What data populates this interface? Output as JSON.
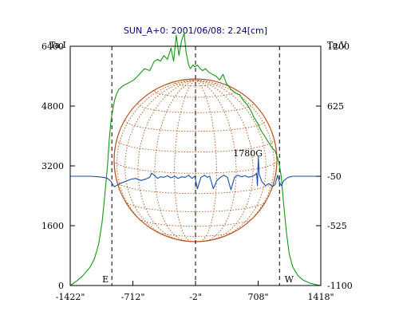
{
  "chart_data": {
    "type": "line",
    "title": "SUN_A+0: 2001/06/08: 2.24[cm]",
    "left_axis_title": "Ta,I",
    "right_axis_title": "Ta,V",
    "x_ticks": [
      {
        "value": -1422,
        "label": "-1422\""
      },
      {
        "value": -712,
        "label": "-712\""
      },
      {
        "value": -2,
        "label": "-2\""
      },
      {
        "value": 708,
        "label": "708\""
      },
      {
        "value": 1418,
        "label": "1418\""
      }
    ],
    "xlim": [
      -1422,
      1418
    ],
    "left_ylim": [
      0,
      6400
    ],
    "left_ticks": [
      0,
      1600,
      3200,
      4800,
      6400
    ],
    "right_ylim": [
      -1100,
      1200
    ],
    "right_ticks": [
      -1100,
      -525,
      -50,
      625,
      1200
    ],
    "limb_markers": [
      {
        "value": -950,
        "label": "E"
      },
      {
        "value": -2,
        "label": ""
      },
      {
        "value": 950,
        "label": "W"
      }
    ],
    "annotation": {
      "text": "1780G",
      "x": 700,
      "y_right": -50
    },
    "colors": {
      "intensity": "#119911",
      "polarization": "#1a4fa8",
      "disk": "#b5541a",
      "title": "#000080"
    },
    "series": [
      {
        "axis": "left",
        "x": [
          -1422,
          -1350,
          -1280,
          -1200,
          -1150,
          -1100,
          -1060,
          -1030,
          -1000,
          -980,
          -960,
          -940,
          -920,
          -900,
          -870,
          -820,
          -760,
          -700,
          -640,
          -580,
          -520,
          -470,
          -430,
          -400,
          -360,
          -320,
          -280,
          -250,
          -220,
          -190,
          -160,
          -130,
          -110,
          -80,
          -60,
          -30,
          -10,
          20,
          50,
          80,
          110,
          150,
          190,
          230,
          270,
          310,
          350,
          400,
          450,
          500,
          540,
          580,
          620,
          660,
          700,
          740,
          780,
          820,
          860,
          900,
          930,
          950,
          970,
          1000,
          1030,
          1060,
          1100,
          1160,
          1220,
          1300,
          1370,
          1418
        ],
        "y": [
          0,
          120,
          260,
          480,
          700,
          1100,
          1700,
          2400,
          3200,
          3900,
          4400,
          4700,
          4950,
          5100,
          5250,
          5350,
          5420,
          5500,
          5650,
          5800,
          5750,
          6000,
          6050,
          6000,
          6150,
          6050,
          6350,
          6000,
          6700,
          6150,
          6550,
          6750,
          6250,
          5900,
          5800,
          5900,
          5850,
          5900,
          5800,
          5750,
          5800,
          5700,
          5650,
          5600,
          5500,
          5650,
          5400,
          5250,
          5150,
          5100,
          4950,
          4850,
          4700,
          4500,
          4350,
          4150,
          4000,
          3850,
          3700,
          3600,
          3400,
          3200,
          2900,
          2100,
          1400,
          850,
          500,
          260,
          140,
          60,
          20,
          0
        ]
      },
      {
        "axis": "right",
        "x": [
          -1422,
          -1300,
          -1200,
          -1100,
          -1050,
          -1000,
          -960,
          -940,
          -920,
          -900,
          -860,
          -800,
          -740,
          -680,
          -620,
          -560,
          -520,
          -500,
          -470,
          -430,
          -400,
          -360,
          -320,
          -280,
          -240,
          -200,
          -160,
          -120,
          -80,
          -40,
          -10,
          20,
          60,
          100,
          130,
          160,
          200,
          240,
          280,
          320,
          360,
          400,
          440,
          480,
          520,
          560,
          600,
          640,
          670,
          690,
          700,
          710,
          720,
          750,
          790,
          830,
          870,
          900,
          930,
          950,
          970,
          1000,
          1050,
          1100,
          1200,
          1300,
          1418
        ],
        "y": [
          -50,
          -50,
          -50,
          -55,
          -60,
          -70,
          -100,
          -130,
          -150,
          -140,
          -120,
          -100,
          -80,
          -70,
          -90,
          -75,
          -60,
          -20,
          -40,
          -70,
          -55,
          -60,
          -45,
          -65,
          -50,
          -70,
          -55,
          -60,
          -40,
          -70,
          -50,
          -170,
          -60,
          -40,
          -60,
          -50,
          -170,
          -90,
          -60,
          -40,
          -60,
          -180,
          -60,
          -40,
          -55,
          -45,
          -60,
          -50,
          -40,
          -20,
          -140,
          140,
          -30,
          -100,
          -140,
          -120,
          -150,
          -130,
          -40,
          -110,
          -140,
          -90,
          -60,
          -50,
          -50,
          -50,
          -50
        ]
      }
    ],
    "grid": false,
    "legend": "none"
  }
}
